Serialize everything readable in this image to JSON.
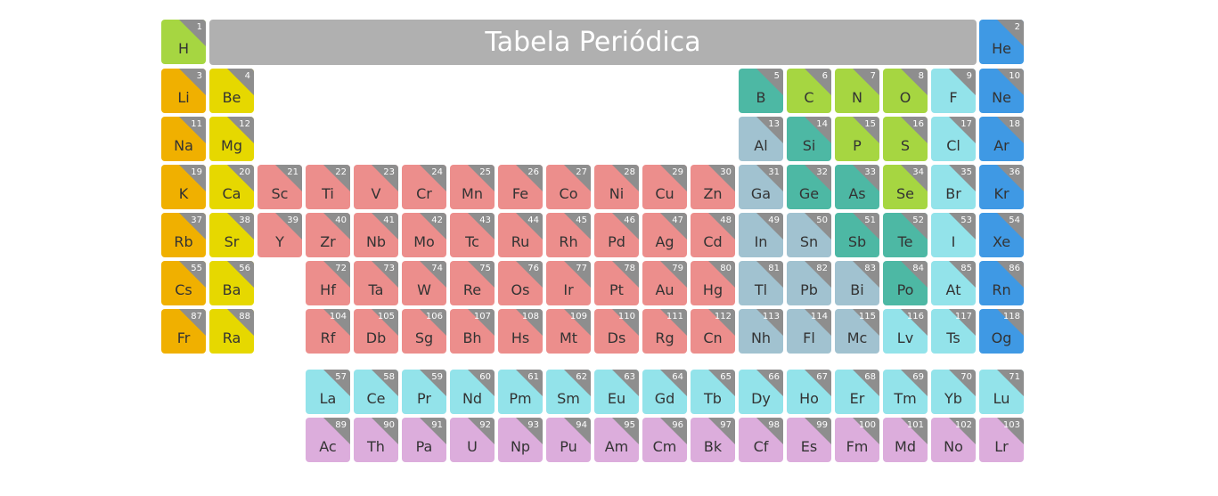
{
  "title": "Tabela Periódica",
  "colors": {
    "alkali": "#f0b000",
    "alkaline_earth": "#e6d800",
    "transition": "#ec8e8c",
    "post_transition": "#a1c2d0",
    "metalloid": "#4db8a4",
    "nonmetal": "#a6d641",
    "halogen": "#93e3ea",
    "noble_gas": "#3f99e4",
    "lanthanide": "#93e3ea",
    "actinide": "#dcaddc",
    "corner": "#8e8e8e",
    "title_bar": "#b0b0b0"
  },
  "elements": [
    {
      "n": "1",
      "s": "H",
      "c": "nonmetal",
      "r": 0,
      "col": 0
    },
    {
      "n": "2",
      "s": "He",
      "c": "noble_gas",
      "r": 0,
      "col": 17
    },
    {
      "n": "3",
      "s": "Li",
      "c": "alkali",
      "r": 1,
      "col": 0
    },
    {
      "n": "4",
      "s": "Be",
      "c": "alkaline_earth",
      "r": 1,
      "col": 1
    },
    {
      "n": "5",
      "s": "B",
      "c": "metalloid",
      "r": 1,
      "col": 12
    },
    {
      "n": "6",
      "s": "C",
      "c": "nonmetal",
      "r": 1,
      "col": 13
    },
    {
      "n": "7",
      "s": "N",
      "c": "nonmetal",
      "r": 1,
      "col": 14
    },
    {
      "n": "8",
      "s": "O",
      "c": "nonmetal",
      "r": 1,
      "col": 15
    },
    {
      "n": "9",
      "s": "F",
      "c": "halogen",
      "r": 1,
      "col": 16
    },
    {
      "n": "10",
      "s": "Ne",
      "c": "noble_gas",
      "r": 1,
      "col": 17
    },
    {
      "n": "11",
      "s": "Na",
      "c": "alkali",
      "r": 2,
      "col": 0
    },
    {
      "n": "12",
      "s": "Mg",
      "c": "alkaline_earth",
      "r": 2,
      "col": 1
    },
    {
      "n": "13",
      "s": "Al",
      "c": "post_transition",
      "r": 2,
      "col": 12
    },
    {
      "n": "14",
      "s": "Si",
      "c": "metalloid",
      "r": 2,
      "col": 13
    },
    {
      "n": "15",
      "s": "P",
      "c": "nonmetal",
      "r": 2,
      "col": 14
    },
    {
      "n": "16",
      "s": "S",
      "c": "nonmetal",
      "r": 2,
      "col": 15
    },
    {
      "n": "17",
      "s": "Cl",
      "c": "halogen",
      "r": 2,
      "col": 16
    },
    {
      "n": "18",
      "s": "Ar",
      "c": "noble_gas",
      "r": 2,
      "col": 17
    },
    {
      "n": "19",
      "s": "K",
      "c": "alkali",
      "r": 3,
      "col": 0
    },
    {
      "n": "20",
      "s": "Ca",
      "c": "alkaline_earth",
      "r": 3,
      "col": 1
    },
    {
      "n": "21",
      "s": "Sc",
      "c": "transition",
      "r": 3,
      "col": 2
    },
    {
      "n": "22",
      "s": "Ti",
      "c": "transition",
      "r": 3,
      "col": 3
    },
    {
      "n": "23",
      "s": "V",
      "c": "transition",
      "r": 3,
      "col": 4
    },
    {
      "n": "24",
      "s": "Cr",
      "c": "transition",
      "r": 3,
      "col": 5
    },
    {
      "n": "25",
      "s": "Mn",
      "c": "transition",
      "r": 3,
      "col": 6
    },
    {
      "n": "26",
      "s": "Fe",
      "c": "transition",
      "r": 3,
      "col": 7
    },
    {
      "n": "27",
      "s": "Co",
      "c": "transition",
      "r": 3,
      "col": 8
    },
    {
      "n": "28",
      "s": "Ni",
      "c": "transition",
      "r": 3,
      "col": 9
    },
    {
      "n": "29",
      "s": "Cu",
      "c": "transition",
      "r": 3,
      "col": 10
    },
    {
      "n": "30",
      "s": "Zn",
      "c": "transition",
      "r": 3,
      "col": 11
    },
    {
      "n": "31",
      "s": "Ga",
      "c": "post_transition",
      "r": 3,
      "col": 12
    },
    {
      "n": "32",
      "s": "Ge",
      "c": "metalloid",
      "r": 3,
      "col": 13
    },
    {
      "n": "33",
      "s": "As",
      "c": "metalloid",
      "r": 3,
      "col": 14
    },
    {
      "n": "34",
      "s": "Se",
      "c": "nonmetal",
      "r": 3,
      "col": 15
    },
    {
      "n": "35",
      "s": "Br",
      "c": "halogen",
      "r": 3,
      "col": 16
    },
    {
      "n": "36",
      "s": "Kr",
      "c": "noble_gas",
      "r": 3,
      "col": 17
    },
    {
      "n": "37",
      "s": "Rb",
      "c": "alkali",
      "r": 4,
      "col": 0
    },
    {
      "n": "38",
      "s": "Sr",
      "c": "alkaline_earth",
      "r": 4,
      "col": 1
    },
    {
      "n": "39",
      "s": "Y",
      "c": "transition",
      "r": 4,
      "col": 2
    },
    {
      "n": "40",
      "s": "Zr",
      "c": "transition",
      "r": 4,
      "col": 3
    },
    {
      "n": "41",
      "s": "Nb",
      "c": "transition",
      "r": 4,
      "col": 4
    },
    {
      "n": "42",
      "s": "Mo",
      "c": "transition",
      "r": 4,
      "col": 5
    },
    {
      "n": "43",
      "s": "Tc",
      "c": "transition",
      "r": 4,
      "col": 6
    },
    {
      "n": "44",
      "s": "Ru",
      "c": "transition",
      "r": 4,
      "col": 7
    },
    {
      "n": "45",
      "s": "Rh",
      "c": "transition",
      "r": 4,
      "col": 8
    },
    {
      "n": "46",
      "s": "Pd",
      "c": "transition",
      "r": 4,
      "col": 9
    },
    {
      "n": "47",
      "s": "Ag",
      "c": "transition",
      "r": 4,
      "col": 10
    },
    {
      "n": "48",
      "s": "Cd",
      "c": "transition",
      "r": 4,
      "col": 11
    },
    {
      "n": "49",
      "s": "In",
      "c": "post_transition",
      "r": 4,
      "col": 12
    },
    {
      "n": "50",
      "s": "Sn",
      "c": "post_transition",
      "r": 4,
      "col": 13
    },
    {
      "n": "51",
      "s": "Sb",
      "c": "metalloid",
      "r": 4,
      "col": 14
    },
    {
      "n": "52",
      "s": "Te",
      "c": "metalloid",
      "r": 4,
      "col": 15
    },
    {
      "n": "53",
      "s": "I",
      "c": "halogen",
      "r": 4,
      "col": 16
    },
    {
      "n": "54",
      "s": "Xe",
      "c": "noble_gas",
      "r": 4,
      "col": 17
    },
    {
      "n": "55",
      "s": "Cs",
      "c": "alkali",
      "r": 5,
      "col": 0
    },
    {
      "n": "56",
      "s": "Ba",
      "c": "alkaline_earth",
      "r": 5,
      "col": 1
    },
    {
      "n": "72",
      "s": "Hf",
      "c": "transition",
      "r": 5,
      "col": 3
    },
    {
      "n": "73",
      "s": "Ta",
      "c": "transition",
      "r": 5,
      "col": 4
    },
    {
      "n": "74",
      "s": "W",
      "c": "transition",
      "r": 5,
      "col": 5
    },
    {
      "n": "75",
      "s": "Re",
      "c": "transition",
      "r": 5,
      "col": 6
    },
    {
      "n": "76",
      "s": "Os",
      "c": "transition",
      "r": 5,
      "col": 7
    },
    {
      "n": "77",
      "s": "Ir",
      "c": "transition",
      "r": 5,
      "col": 8
    },
    {
      "n": "78",
      "s": "Pt",
      "c": "transition",
      "r": 5,
      "col": 9
    },
    {
      "n": "79",
      "s": "Au",
      "c": "transition",
      "r": 5,
      "col": 10
    },
    {
      "n": "80",
      "s": "Hg",
      "c": "transition",
      "r": 5,
      "col": 11
    },
    {
      "n": "81",
      "s": "Tl",
      "c": "post_transition",
      "r": 5,
      "col": 12
    },
    {
      "n": "82",
      "s": "Pb",
      "c": "post_transition",
      "r": 5,
      "col": 13
    },
    {
      "n": "83",
      "s": "Bi",
      "c": "post_transition",
      "r": 5,
      "col": 14
    },
    {
      "n": "84",
      "s": "Po",
      "c": "metalloid",
      "r": 5,
      "col": 15
    },
    {
      "n": "85",
      "s": "At",
      "c": "halogen",
      "r": 5,
      "col": 16
    },
    {
      "n": "86",
      "s": "Rn",
      "c": "noble_gas",
      "r": 5,
      "col": 17
    },
    {
      "n": "87",
      "s": "Fr",
      "c": "alkali",
      "r": 6,
      "col": 0
    },
    {
      "n": "88",
      "s": "Ra",
      "c": "alkaline_earth",
      "r": 6,
      "col": 1
    },
    {
      "n": "104",
      "s": "Rf",
      "c": "transition",
      "r": 6,
      "col": 3
    },
    {
      "n": "105",
      "s": "Db",
      "c": "transition",
      "r": 6,
      "col": 4
    },
    {
      "n": "106",
      "s": "Sg",
      "c": "transition",
      "r": 6,
      "col": 5
    },
    {
      "n": "107",
      "s": "Bh",
      "c": "transition",
      "r": 6,
      "col": 6
    },
    {
      "n": "108",
      "s": "Hs",
      "c": "transition",
      "r": 6,
      "col": 7
    },
    {
      "n": "109",
      "s": "Mt",
      "c": "transition",
      "r": 6,
      "col": 8
    },
    {
      "n": "110",
      "s": "Ds",
      "c": "transition",
      "r": 6,
      "col": 9
    },
    {
      "n": "111",
      "s": "Rg",
      "c": "transition",
      "r": 6,
      "col": 10
    },
    {
      "n": "112",
      "s": "Cn",
      "c": "transition",
      "r": 6,
      "col": 11
    },
    {
      "n": "113",
      "s": "Nh",
      "c": "post_transition",
      "r": 6,
      "col": 12
    },
    {
      "n": "114",
      "s": "Fl",
      "c": "post_transition",
      "r": 6,
      "col": 13
    },
    {
      "n": "115",
      "s": "Mc",
      "c": "post_transition",
      "r": 6,
      "col": 14
    },
    {
      "n": "116",
      "s": "Lv",
      "c": "halogen",
      "r": 6,
      "col": 15
    },
    {
      "n": "117",
      "s": "Ts",
      "c": "halogen",
      "r": 6,
      "col": 16
    },
    {
      "n": "118",
      "s": "Og",
      "c": "noble_gas",
      "r": 6,
      "col": 17
    },
    {
      "n": "57",
      "s": "La",
      "c": "lanthanide",
      "r": 7,
      "col": 3
    },
    {
      "n": "58",
      "s": "Ce",
      "c": "lanthanide",
      "r": 7,
      "col": 4
    },
    {
      "n": "59",
      "s": "Pr",
      "c": "lanthanide",
      "r": 7,
      "col": 5
    },
    {
      "n": "60",
      "s": "Nd",
      "c": "lanthanide",
      "r": 7,
      "col": 6
    },
    {
      "n": "61",
      "s": "Pm",
      "c": "lanthanide",
      "r": 7,
      "col": 7
    },
    {
      "n": "62",
      "s": "Sm",
      "c": "lanthanide",
      "r": 7,
      "col": 8
    },
    {
      "n": "63",
      "s": "Eu",
      "c": "lanthanide",
      "r": 7,
      "col": 9
    },
    {
      "n": "64",
      "s": "Gd",
      "c": "lanthanide",
      "r": 7,
      "col": 10
    },
    {
      "n": "65",
      "s": "Tb",
      "c": "lanthanide",
      "r": 7,
      "col": 11
    },
    {
      "n": "66",
      "s": "Dy",
      "c": "lanthanide",
      "r": 7,
      "col": 12
    },
    {
      "n": "67",
      "s": "Ho",
      "c": "lanthanide",
      "r": 7,
      "col": 13
    },
    {
      "n": "68",
      "s": "Er",
      "c": "lanthanide",
      "r": 7,
      "col": 14
    },
    {
      "n": "69",
      "s": "Tm",
      "c": "lanthanide",
      "r": 7,
      "col": 15
    },
    {
      "n": "70",
      "s": "Yb",
      "c": "lanthanide",
      "r": 7,
      "col": 16
    },
    {
      "n": "71",
      "s": "Lu",
      "c": "lanthanide",
      "r": 7,
      "col": 17
    },
    {
      "n": "89",
      "s": "Ac",
      "c": "actinide",
      "r": 8,
      "col": 3
    },
    {
      "n": "90",
      "s": "Th",
      "c": "actinide",
      "r": 8,
      "col": 4
    },
    {
      "n": "91",
      "s": "Pa",
      "c": "actinide",
      "r": 8,
      "col": 5
    },
    {
      "n": "92",
      "s": "U",
      "c": "actinide",
      "r": 8,
      "col": 6
    },
    {
      "n": "93",
      "s": "Np",
      "c": "actinide",
      "r": 8,
      "col": 7
    },
    {
      "n": "94",
      "s": "Pu",
      "c": "actinide",
      "r": 8,
      "col": 8
    },
    {
      "n": "95",
      "s": "Am",
      "c": "actinide",
      "r": 8,
      "col": 9
    },
    {
      "n": "96",
      "s": "Cm",
      "c": "actinide",
      "r": 8,
      "col": 10
    },
    {
      "n": "97",
      "s": "Bk",
      "c": "actinide",
      "r": 8,
      "col": 11
    },
    {
      "n": "98",
      "s": "Cf",
      "c": "actinide",
      "r": 8,
      "col": 12
    },
    {
      "n": "99",
      "s": "Es",
      "c": "actinide",
      "r": 8,
      "col": 13
    },
    {
      "n": "100",
      "s": "Fm",
      "c": "actinide",
      "r": 8,
      "col": 14
    },
    {
      "n": "101",
      "s": "Md",
      "c": "actinide",
      "r": 8,
      "col": 15
    },
    {
      "n": "102",
      "s": "No",
      "c": "actinide",
      "r": 8,
      "col": 16
    },
    {
      "n": "103",
      "s": "Lr",
      "c": "actinide",
      "r": 8,
      "col": 17
    }
  ]
}
